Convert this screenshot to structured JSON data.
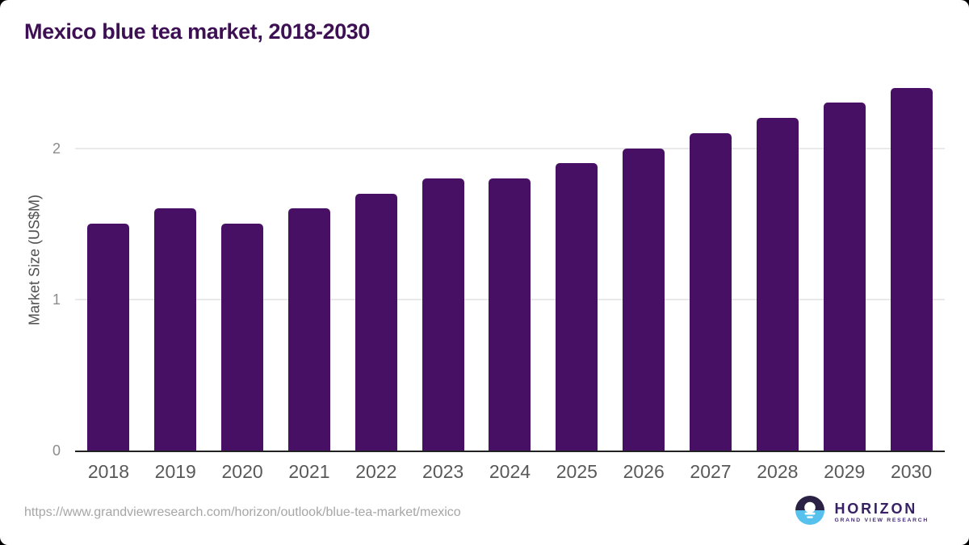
{
  "page": {
    "title": "Mexico blue tea market, 2018-2030",
    "source_url": "https://www.grandviewresearch.com/horizon/outlook/blue-tea-market/mexico"
  },
  "chart_data": {
    "type": "bar",
    "title": "Mexico blue tea market, 2018-2030",
    "categories": [
      "2018",
      "2019",
      "2020",
      "2021",
      "2022",
      "2023",
      "2024",
      "2025",
      "2026",
      "2027",
      "2028",
      "2029",
      "2030"
    ],
    "values": [
      1.5,
      1.6,
      1.5,
      1.6,
      1.7,
      1.8,
      1.8,
      1.9,
      2.0,
      2.1,
      2.2,
      2.3,
      2.4
    ],
    "xlabel": "",
    "ylabel": "Market Size (US$M)",
    "ylim": [
      0,
      2.5
    ],
    "yticks": [
      0,
      1,
      2
    ],
    "grid": "horizontal-y-only",
    "legend": "none",
    "bar_color": "#471064"
  },
  "branding": {
    "brand": "HORIZON",
    "subbrand": "GRAND VIEW RESEARCH",
    "logo_icon": "horizon-sun-over-water-icon",
    "colors": {
      "dark": "#2b2145",
      "light_blue": "#56c1ed",
      "text": "#372064"
    }
  },
  "colors": {
    "background": "#ffffff",
    "outside_corners": "#000000",
    "bar": "#471064",
    "title": "#3d1053",
    "axis_line": "#222222",
    "gridline": "#e9e9e9",
    "x_label": "#595959",
    "y_tick": "#8c8c8c",
    "y_axis_title": "#4f4f4f",
    "url_text": "#a6a6a6"
  }
}
